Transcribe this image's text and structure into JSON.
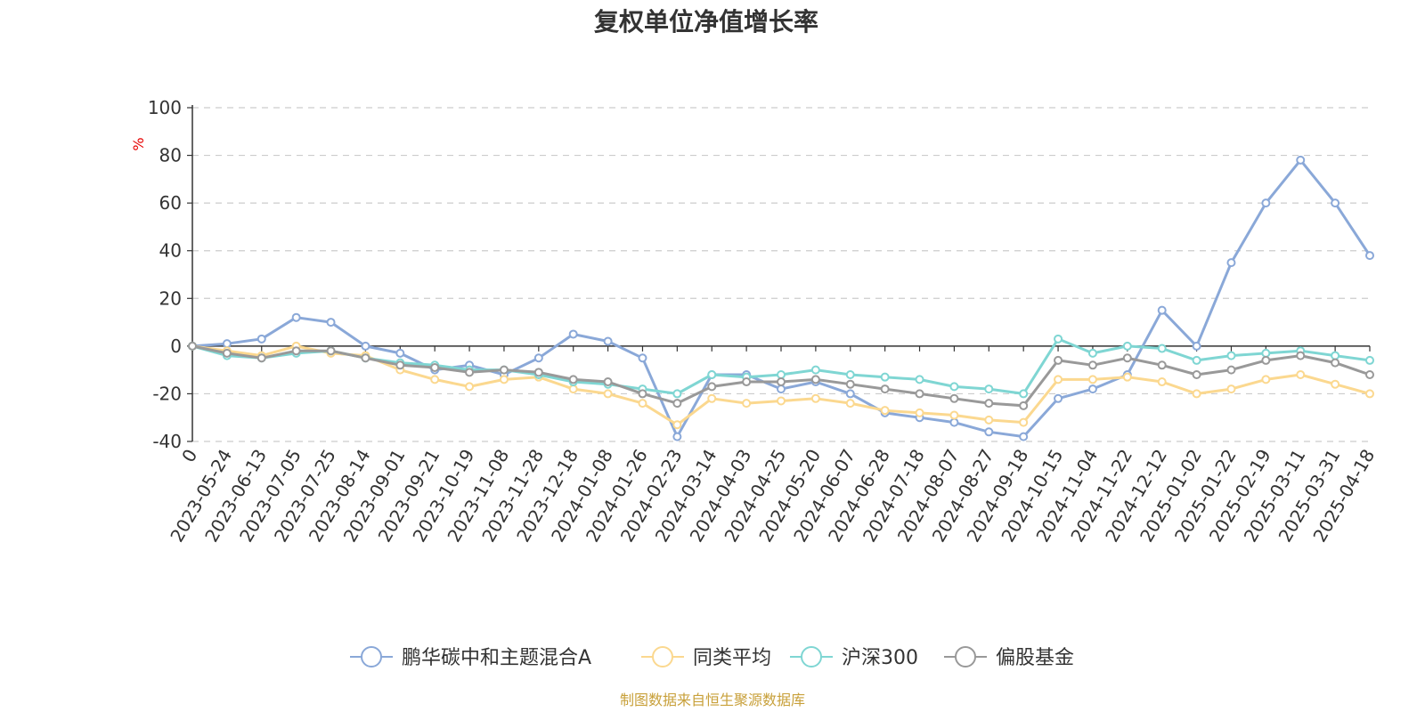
{
  "chart_data": {
    "type": "line",
    "title": "复权单位净值增长率",
    "ylabel": "%",
    "ylim": [
      -40,
      100
    ],
    "yticks": [
      100,
      80,
      60,
      40,
      20,
      0,
      -20,
      -40
    ],
    "grid": true,
    "legend_position": "bottom",
    "x_tick_labels": [
      "0",
      "2023-05-24",
      "2023-06-13",
      "2023-07-05",
      "2023-07-25",
      "2023-08-14",
      "2023-09-01",
      "2023-09-21",
      "2023-10-19",
      "2023-11-08",
      "2023-11-28",
      "2023-12-18",
      "2024-01-08",
      "2024-01-26",
      "2024-02-23",
      "2024-03-14",
      "2024-04-03",
      "2024-04-25",
      "2024-05-20",
      "2024-06-07",
      "2024-06-28",
      "2024-07-18",
      "2024-08-07",
      "2024-08-27",
      "2024-09-18",
      "2024-10-15",
      "2024-11-04",
      "2024-11-22",
      "2024-12-12",
      "2025-01-02",
      "2025-01-22",
      "2025-02-19",
      "2025-03-11",
      "2025-03-31",
      "2025-04-18"
    ],
    "series": [
      {
        "name": "鹏华碳中和主题混合A",
        "color": "#8aa8d8",
        "values": [
          0,
          1,
          3,
          12,
          10,
          0,
          -3,
          -10,
          -8,
          -12,
          -5,
          5,
          2,
          -5,
          -38,
          -12,
          -12,
          -18,
          -15,
          -20,
          -28,
          -30,
          -32,
          -36,
          -38,
          -22,
          -18,
          -12,
          15,
          0,
          35,
          60,
          78,
          60,
          38
        ]
      },
      {
        "name": "同类平均",
        "color": "#fbd88f",
        "values": [
          0,
          -2,
          -4,
          0,
          -3,
          -4,
          -10,
          -14,
          -17,
          -14,
          -13,
          -18,
          -20,
          -24,
          -33,
          -22,
          -24,
          -23,
          -22,
          -24,
          -27,
          -28,
          -29,
          -31,
          -32,
          -14,
          -14,
          -13,
          -15,
          -20,
          -18,
          -14,
          -12,
          -16,
          -20
        ]
      },
      {
        "name": "沪深300",
        "color": "#7fd6d3",
        "values": [
          0,
          -4,
          -5,
          -3,
          -2,
          -5,
          -7,
          -8,
          -10,
          -10,
          -12,
          -15,
          -16,
          -18,
          -20,
          -12,
          -13,
          -12,
          -10,
          -12,
          -13,
          -14,
          -17,
          -18,
          -20,
          3,
          -3,
          0,
          -1,
          -6,
          -4,
          -3,
          -2,
          -4,
          -6
        ]
      },
      {
        "name": "偏股基金",
        "color": "#999999",
        "values": [
          0,
          -3,
          -5,
          -2,
          -2,
          -5,
          -8,
          -9,
          -11,
          -10,
          -11,
          -14,
          -15,
          -20,
          -24,
          -17,
          -15,
          -15,
          -14,
          -16,
          -18,
          -20,
          -22,
          -24,
          -25,
          -6,
          -8,
          -5,
          -8,
          -12,
          -10,
          -6,
          -4,
          -7,
          -12
        ]
      }
    ]
  },
  "source_text": "制图数据来自恒生聚源数据库"
}
